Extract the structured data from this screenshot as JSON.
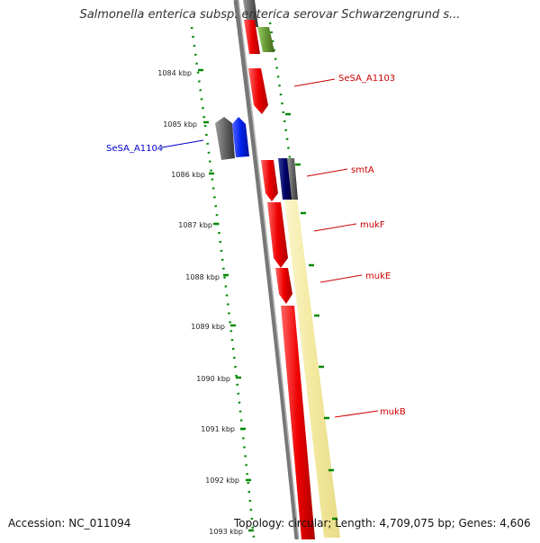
{
  "title": "Salmonella enterica subsp. enterica serovar Schwarzengrund s...",
  "footer": {
    "accession": "Accession: NC_011094",
    "topology": "Topology: circular; Length: 4,709,075 bp; Genes: 4,606"
  },
  "ticks": [
    "1084 kbp",
    "1085 kbp",
    "1086 kbp",
    "1087 kbp",
    "1088 kbp",
    "1089 kbp",
    "1090 kbp",
    "1091 kbp",
    "1092 kbp",
    "1093 kbp"
  ],
  "gene_labels": [
    {
      "text": "SeSA_A1103",
      "color": "#cc0000"
    },
    {
      "text": "SeSA_A1104",
      "color": "#0000cc"
    },
    {
      "text": "smtA",
      "color": "#cc0000"
    },
    {
      "text": "mukF",
      "color": "#cc0000"
    },
    {
      "text": "mukE",
      "color": "#cc0000"
    },
    {
      "text": "mukB",
      "color": "#cc0000"
    }
  ],
  "colors": {
    "forward": "#ee0000",
    "reverse_blue": "#0022ee",
    "dark_blue": "#000066",
    "gray": "#666666",
    "olive": "#669933",
    "yellow": "#f5eeaa",
    "tick_green": "#008800"
  }
}
